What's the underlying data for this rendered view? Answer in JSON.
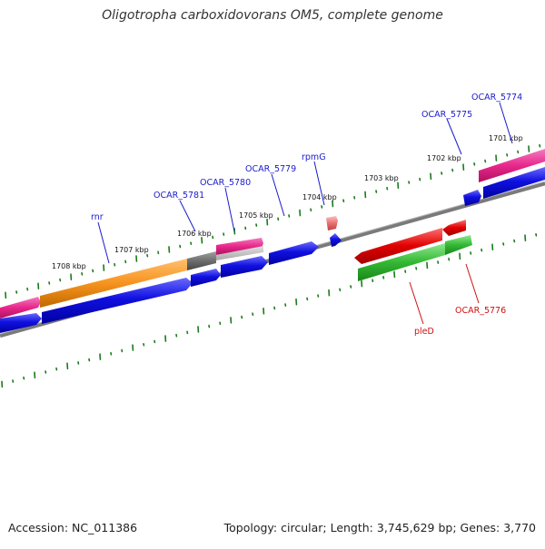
{
  "title": "Oligotropha carboxidovorans OM5, complete genome",
  "footer": {
    "accession": "Accession: NC_011386",
    "summary": "Topology: circular; Length: 3,745,629 bp; Genes: 3,770"
  },
  "ticks": [
    "1701 kbp",
    "1702 kbp",
    "1703 kbp",
    "1704 kbp",
    "1705 kbp",
    "1706 kbp",
    "1707 kbp",
    "1708 kbp"
  ],
  "gene_labels_forward": [
    "OCAR_5774",
    "OCAR_5775",
    "rpmG",
    "OCAR_5779",
    "OCAR_5780",
    "OCAR_5781",
    "rnr"
  ],
  "gene_labels_reverse": [
    "pleD",
    "OCAR_5776"
  ],
  "colors": {
    "forward_label": "#1a1acc",
    "reverse_label": "#cc1111",
    "cds": "#1010e0",
    "gene_magenta": "#e8278a",
    "gene_orange": "#f7931e",
    "gene_grey": "#6e6e6e",
    "gene_red": "#e00000",
    "gene_green": "#33b833",
    "rna_pink": "#e87070",
    "backbone": "#7a7a7a",
    "tick": "#1a7a1a"
  }
}
